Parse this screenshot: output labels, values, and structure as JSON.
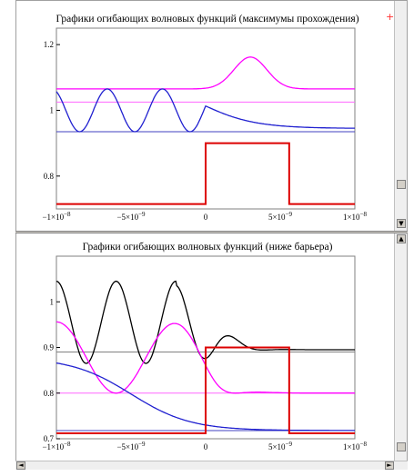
{
  "chart_data": [
    {
      "type": "line",
      "title": "Графики огибающих волновых функций (максимумы прохождения)",
      "xlim": [
        -1e-08,
        1e-08
      ],
      "ylim": [
        0.7,
        1.25
      ],
      "grid": false,
      "x_tick_labels": [
        "−1×10",
        "−5×10",
        "0",
        "5×10",
        "1×10"
      ],
      "x_tick_exponents": [
        "−8",
        "−9",
        "",
        "−9",
        "−8"
      ],
      "y_tick_labels": [
        "1.2",
        "1",
        "0.8"
      ],
      "series": [
        {
          "color": "#ff00ff",
          "kind": "envelope_bump",
          "level": 1.065,
          "peak": 1.162,
          "peak_x": 3e-09
        },
        {
          "color": "#2020d0",
          "kind": "envelope_oscillating",
          "left_level": 1.0,
          "amplitude": 0.065,
          "barrier_start": 0,
          "right_level": 0.945
        },
        {
          "color": "#dd0000",
          "kind": "barrier",
          "low": 0.715,
          "high": 0.9,
          "start": 0,
          "end": 5.6e-09
        }
      ],
      "reference_lines": [
        {
          "color": "#ff66ff",
          "y": 1.025
        },
        {
          "color": "#4040c0",
          "y": 0.935
        }
      ]
    },
    {
      "type": "line",
      "title": "Графики огибающих волновых функций (ниже барьера)",
      "xlim": [
        -1e-08,
        1e-08
      ],
      "ylim": [
        0.7,
        1.1
      ],
      "grid": false,
      "x_tick_labels": [
        "−1×10",
        "−5×10",
        "0",
        "5×10",
        "1×10"
      ],
      "x_tick_exponents": [
        "−8",
        "−9",
        "",
        "−9",
        "−8"
      ],
      "y_tick_labels": [
        "1",
        "0.9",
        "0.8",
        "0.7"
      ],
      "series": [
        {
          "color": "#000000",
          "kind": "envelope_oscillating",
          "left_level": 0.99,
          "amplitude": 0.055,
          "right_level": 0.895
        },
        {
          "color": "#ff00ff",
          "kind": "envelope_oscillating",
          "left_level": 0.88,
          "amplitude": 0.08,
          "right_level": 0.8
        },
        {
          "color": "#2020d0",
          "kind": "decay",
          "start": 0.878,
          "end": 0.718
        },
        {
          "color": "#dd0000",
          "kind": "barrier",
          "low": 0.712,
          "high": 0.9,
          "start": 0,
          "end": 5.6e-09
        }
      ],
      "reference_lines": [
        {
          "color": "#808080",
          "y": 0.89
        },
        {
          "color": "#ff66ff",
          "y": 0.8
        },
        {
          "color": "#4040c0",
          "y": 0.718
        }
      ]
    }
  ],
  "ui": {
    "marker_symbol": "+",
    "scroll_up": "▲",
    "scroll_down": "▼",
    "scroll_left": "◄",
    "scroll_right": "►"
  }
}
